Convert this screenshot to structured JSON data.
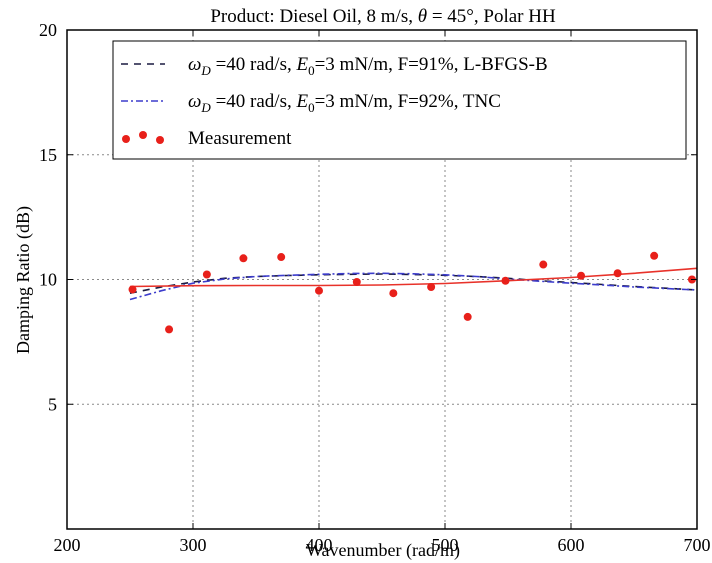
{
  "chart_data": {
    "type": "line",
    "title_parts": {
      "a": "Product: Diesel Oil, 8 m/s, ",
      "theta": "θ",
      "b": " = 45°, Polar HH"
    },
    "xlabel": "Wavenumber (rad/m)",
    "ylabel": "Damping Ratio (dB)",
    "xlim": [
      200,
      700
    ],
    "ylim": [
      0,
      20
    ],
    "xticks": [
      "200",
      "300",
      "400",
      "500",
      "600",
      "700"
    ],
    "yticks": [
      "5",
      "10",
      "15",
      "20"
    ],
    "grid": true,
    "legend_position": "top-right",
    "legend": [
      {
        "omega": "ω",
        "omega_sub": "D",
        "mid": " =40 rad/s, ",
        "e": "E",
        "e_sub": "0",
        "tail": "=3 mN/m, F=91%, L-BFGS-B"
      },
      {
        "omega": "ω",
        "omega_sub": "D",
        "mid": " =40 rad/s, ",
        "e": "E",
        "e_sub": "0",
        "tail": "=3 mN/m, F=92%, TNC"
      },
      {
        "plain": "Measurement"
      }
    ],
    "series": [
      {
        "style": "dashed",
        "color": "#1a1a40",
        "x": [
          250,
          275,
          300,
          325,
          350,
          375,
          400,
          425,
          450,
          475,
          500,
          525,
          550,
          575,
          600,
          625,
          650,
          675,
          700
        ],
        "y": [
          9.45,
          9.7,
          9.9,
          10.05,
          10.12,
          10.16,
          10.19,
          10.21,
          10.22,
          10.2,
          10.17,
          10.12,
          10.05,
          9.95,
          9.88,
          9.8,
          9.72,
          9.65,
          9.58
        ]
      },
      {
        "style": "dashdot",
        "color": "#3c3ccc",
        "x": [
          250,
          275,
          300,
          325,
          350,
          375,
          400,
          425,
          450,
          475,
          500,
          525,
          550,
          575,
          600,
          625,
          650,
          675,
          700
        ],
        "y": [
          9.2,
          9.55,
          9.85,
          10.02,
          10.12,
          10.17,
          10.21,
          10.24,
          10.25,
          10.23,
          10.19,
          10.12,
          10.02,
          9.93,
          9.85,
          9.78,
          9.7,
          9.64,
          9.58
        ]
      },
      {
        "style": "solid",
        "color": "#e8322a",
        "x": [
          250,
          300,
          350,
          400,
          450,
          500,
          550,
          600,
          650,
          700
        ],
        "y": [
          9.72,
          9.75,
          9.76,
          9.76,
          9.78,
          9.84,
          9.95,
          10.08,
          10.25,
          10.45
        ]
      },
      {
        "style": "markers",
        "color": "#e8201a",
        "x": [
          252,
          281,
          311,
          340,
          370,
          400,
          430,
          459,
          489,
          518,
          548,
          578,
          608,
          637,
          666,
          696
        ],
        "y": [
          9.6,
          8.0,
          10.2,
          10.85,
          10.9,
          9.55,
          9.9,
          9.45,
          9.7,
          8.5,
          9.95,
          10.6,
          10.15,
          10.25,
          10.95,
          10.0
        ]
      }
    ]
  }
}
